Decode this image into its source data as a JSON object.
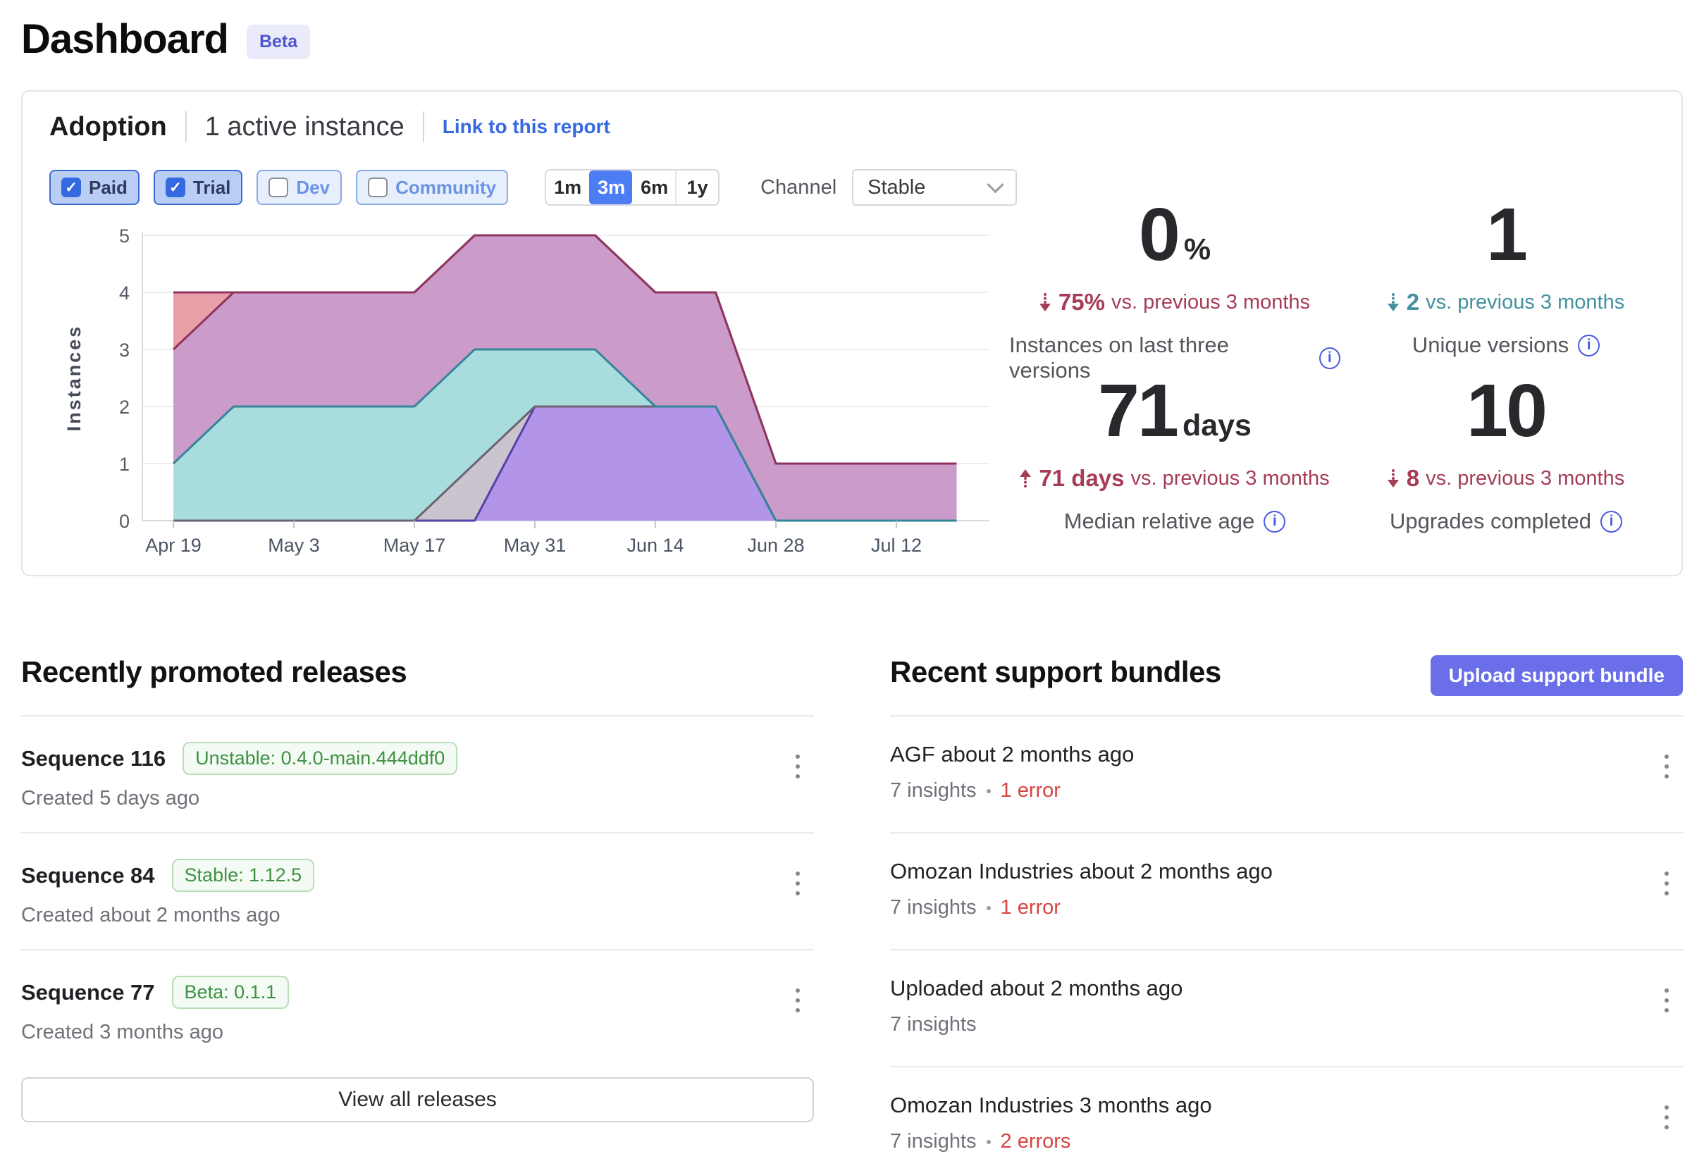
{
  "page": {
    "title": "Dashboard",
    "beta_badge": "Beta"
  },
  "icons": {
    "check": "✓",
    "info": "i"
  },
  "colors": {
    "link_blue": "#3569e0",
    "selected_range_bg": "#4d7df2",
    "upload_bg": "#6a6ee8",
    "beta_bg": "#e9ebfa",
    "beta_text": "#4f55cc",
    "badge_green": "#3f9142",
    "error_red": "#d64541",
    "delta_red": "#a63d57",
    "delta_teal": "#43919f",
    "info_icon": "#4a5be0"
  },
  "adoption": {
    "title": "Adoption",
    "active_instances": "1 active instance",
    "link": "Link to this report",
    "filters": [
      {
        "label": "Paid",
        "checked": true
      },
      {
        "label": "Trial",
        "checked": true
      },
      {
        "label": "Dev",
        "checked": false
      },
      {
        "label": "Community",
        "checked": false
      }
    ],
    "ranges": [
      {
        "label": "1m",
        "selected": false
      },
      {
        "label": "3m",
        "selected": true
      },
      {
        "label": "6m",
        "selected": false
      },
      {
        "label": "1y",
        "selected": false
      }
    ],
    "channel_label": "Channel",
    "channel_value": "Stable",
    "stats": [
      {
        "value": "0",
        "unit": "%",
        "delta_dir": "down",
        "delta": "75%",
        "delta_suffix": "vs. previous 3 months",
        "delta_color": "#a63d57",
        "caption": "Instances on last three versions"
      },
      {
        "value": "1",
        "unit": "",
        "delta_dir": "down",
        "delta": "2",
        "delta_suffix": "vs. previous 3 months",
        "delta_color": "#43919f",
        "caption": "Unique versions"
      },
      {
        "value": "71",
        "unit": "days",
        "delta_dir": "up",
        "delta": "71 days",
        "delta_suffix": "vs. previous 3 months",
        "delta_color": "#a63d57",
        "caption": "Median relative age"
      },
      {
        "value": "10",
        "unit": "",
        "delta_dir": "down",
        "delta": "8",
        "delta_suffix": "vs. previous 3 months",
        "delta_color": "#a63d57",
        "caption": "Upgrades completed"
      }
    ]
  },
  "chart_data": {
    "type": "area",
    "title": "Adoption instances by version over time",
    "xlabel": "",
    "ylabel": "Instances",
    "x": [
      "Apr 19",
      "Apr 26",
      "May 3",
      "May 10",
      "May 17",
      "May 24",
      "May 31",
      "Jun 7",
      "Jun 14",
      "Jun 21",
      "Jun 28",
      "Jul 5",
      "Jul 12",
      "Jul 19"
    ],
    "x_tick_indices": [
      0,
      2,
      4,
      6,
      8,
      10,
      12
    ],
    "x_tick_labels": [
      "Apr 19",
      "May 3",
      "May 17",
      "May 31",
      "Jun 14",
      "Jun 28",
      "Jul 12"
    ],
    "ylim": [
      0,
      5
    ],
    "yticks": [
      0,
      1,
      2,
      3,
      4,
      5
    ],
    "grid": true,
    "legend": false,
    "series": [
      {
        "name": "version-salmon",
        "fill": "#e9a0a8",
        "line": "#8e3560",
        "values": [
          4,
          4,
          4,
          4,
          4,
          5,
          5,
          5,
          4,
          4,
          1,
          1,
          1,
          1
        ]
      },
      {
        "name": "version-pink",
        "fill": "#cb9bc9",
        "line": "#8e3560",
        "values": [
          3,
          4,
          4,
          4,
          4,
          5,
          5,
          5,
          4,
          4,
          1,
          1,
          1,
          1
        ]
      },
      {
        "name": "version-teal",
        "fill": "#a9dddd",
        "line": "#35859b",
        "values": [
          1,
          2,
          2,
          2,
          2,
          3,
          3,
          3,
          2,
          2,
          0,
          0,
          0,
          0
        ]
      },
      {
        "name": "version-gray",
        "fill": "#c9c4cd",
        "line": "#6a6472",
        "values": [
          0,
          0,
          0,
          0,
          0,
          1,
          2,
          2,
          2,
          2,
          0,
          0,
          0,
          0
        ]
      },
      {
        "name": "version-purple",
        "fill": "#b295e8",
        "line": "#5940a8",
        "values": [
          0,
          0,
          0,
          0,
          0,
          0,
          2,
          2,
          2,
          2,
          0,
          0,
          0,
          0
        ]
      }
    ],
    "line_draw_order": [
      "version-salmon",
      "version-pink",
      "version-purple",
      "version-gray",
      "version-teal"
    ]
  },
  "releases": {
    "title": "Recently promoted releases",
    "view_all": "View all releases",
    "items": [
      {
        "name": "Sequence 116",
        "badge": "Unstable: 0.4.0-main.444ddf0",
        "created": "Created 5 days ago"
      },
      {
        "name": "Sequence 84",
        "badge": "Stable: 1.12.5",
        "created": "Created about 2 months ago"
      },
      {
        "name": "Sequence 77",
        "badge": "Beta: 0.1.1",
        "created": "Created 3 months ago"
      }
    ]
  },
  "bundles": {
    "title": "Recent support bundles",
    "upload_button": "Upload support bundle",
    "items": [
      {
        "name": "AGF about 2 months ago",
        "insights": "7 insights",
        "errors": "1 error"
      },
      {
        "name": "Omozan Industries about 2 months ago",
        "insights": "7 insights",
        "errors": "1 error"
      },
      {
        "name": "Uploaded about 2 months ago",
        "insights": "7 insights",
        "errors": ""
      },
      {
        "name": "Omozan Industries 3 months ago",
        "insights": "7 insights",
        "errors": "2 errors"
      }
    ]
  }
}
